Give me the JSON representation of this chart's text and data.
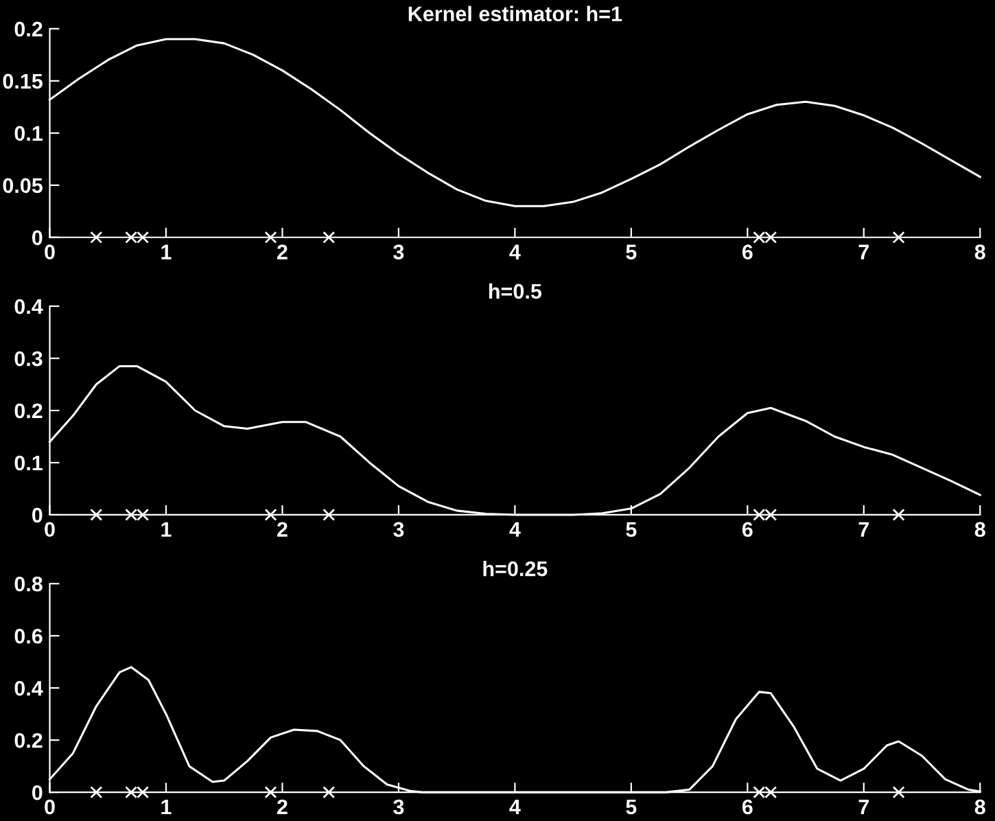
{
  "chart_data": [
    {
      "type": "line",
      "title": "Kernel estimator: h=1",
      "xlim": [
        0,
        8
      ],
      "xticks": [
        0,
        1,
        2,
        3,
        4,
        5,
        6,
        7,
        8
      ],
      "ylim": [
        0,
        0.2
      ],
      "yticks": [
        0,
        0.05,
        0.1,
        0.15,
        0.2
      ],
      "grid": false,
      "legend": false,
      "series": [
        {
          "color": "#ffffff",
          "marker": "none",
          "x": [
            0,
            0.25,
            0.5,
            0.75,
            1,
            1.25,
            1.5,
            1.75,
            2,
            2.25,
            2.5,
            2.75,
            3,
            3.25,
            3.5,
            3.75,
            4,
            4.25,
            4.5,
            4.75,
            5,
            5.25,
            5.5,
            5.75,
            6,
            6.25,
            6.5,
            6.75,
            7,
            7.25,
            7.5,
            7.75,
            8
          ],
          "values": [
            0.132,
            0.152,
            0.17,
            0.184,
            0.19,
            0.19,
            0.186,
            0.175,
            0.16,
            0.142,
            0.122,
            0.1,
            0.08,
            0.062,
            0.046,
            0.035,
            0.03,
            0.03,
            0.034,
            0.043,
            0.056,
            0.07,
            0.087,
            0.103,
            0.118,
            0.127,
            0.13,
            0.126,
            0.117,
            0.105,
            0.09,
            0.074,
            0.058
          ]
        },
        {
          "type": "scatter",
          "color": "#ffffff",
          "marker": "cross",
          "x": [
            0.4,
            0.7,
            0.8,
            1.9,
            2.4,
            6.1,
            6.2,
            7.3
          ],
          "values": [
            0,
            0,
            0,
            0,
            0,
            0,
            0,
            0
          ]
        }
      ]
    },
    {
      "type": "line",
      "title": "h=0.5",
      "xlim": [
        0,
        8
      ],
      "xticks": [
        0,
        1,
        2,
        3,
        4,
        5,
        6,
        7,
        8
      ],
      "ylim": [
        0,
        0.4
      ],
      "yticks": [
        0,
        0.1,
        0.2,
        0.3,
        0.4
      ],
      "grid": false,
      "legend": false,
      "series": [
        {
          "color": "#ffffff",
          "marker": "none",
          "x": [
            0,
            0.2,
            0.4,
            0.6,
            0.75,
            1,
            1.25,
            1.5,
            1.7,
            2,
            2.2,
            2.5,
            2.75,
            3,
            3.25,
            3.5,
            3.75,
            4,
            4.5,
            4.75,
            5,
            5.25,
            5.5,
            5.75,
            6,
            6.2,
            6.5,
            6.75,
            7,
            7.25,
            7.5,
            7.75,
            8
          ],
          "values": [
            0.14,
            0.19,
            0.25,
            0.285,
            0.285,
            0.255,
            0.2,
            0.17,
            0.165,
            0.178,
            0.178,
            0.15,
            0.1,
            0.055,
            0.025,
            0.008,
            0.002,
            0,
            0,
            0.003,
            0.012,
            0.04,
            0.09,
            0.15,
            0.195,
            0.205,
            0.18,
            0.15,
            0.13,
            0.115,
            0.09,
            0.065,
            0.038
          ]
        },
        {
          "type": "scatter",
          "color": "#ffffff",
          "marker": "cross",
          "x": [
            0.4,
            0.7,
            0.8,
            1.9,
            2.4,
            6.1,
            6.2,
            7.3
          ],
          "values": [
            0,
            0,
            0,
            0,
            0,
            0,
            0,
            0
          ]
        }
      ]
    },
    {
      "type": "line",
      "title": "h=0.25",
      "xlim": [
        0,
        8
      ],
      "xticks": [
        0,
        1,
        2,
        3,
        4,
        5,
        6,
        7,
        8
      ],
      "ylim": [
        0,
        0.8
      ],
      "yticks": [
        0,
        0.2,
        0.4,
        0.6,
        0.8
      ],
      "grid": false,
      "legend": false,
      "series": [
        {
          "color": "#ffffff",
          "marker": "none",
          "x": [
            0,
            0.2,
            0.4,
            0.6,
            0.7,
            0.85,
            1,
            1.2,
            1.4,
            1.5,
            1.7,
            1.9,
            2.1,
            2.3,
            2.5,
            2.7,
            2.9,
            3.1,
            3.2,
            5.3,
            5.5,
            5.7,
            5.9,
            6.1,
            6.2,
            6.4,
            6.6,
            6.8,
            7,
            7.2,
            7.3,
            7.5,
            7.7,
            7.9,
            8
          ],
          "values": [
            0.05,
            0.15,
            0.33,
            0.46,
            0.48,
            0.43,
            0.3,
            0.1,
            0.04,
            0.045,
            0.12,
            0.21,
            0.24,
            0.235,
            0.2,
            0.1,
            0.03,
            0.005,
            0,
            0,
            0.01,
            0.1,
            0.28,
            0.385,
            0.38,
            0.25,
            0.09,
            0.045,
            0.09,
            0.18,
            0.195,
            0.14,
            0.05,
            0.01,
            0.003
          ]
        },
        {
          "type": "scatter",
          "color": "#ffffff",
          "marker": "cross",
          "x": [
            0.4,
            0.7,
            0.8,
            1.9,
            2.4,
            6.1,
            6.2,
            7.3
          ],
          "values": [
            0,
            0,
            0,
            0,
            0,
            0,
            0,
            0
          ]
        }
      ]
    }
  ]
}
